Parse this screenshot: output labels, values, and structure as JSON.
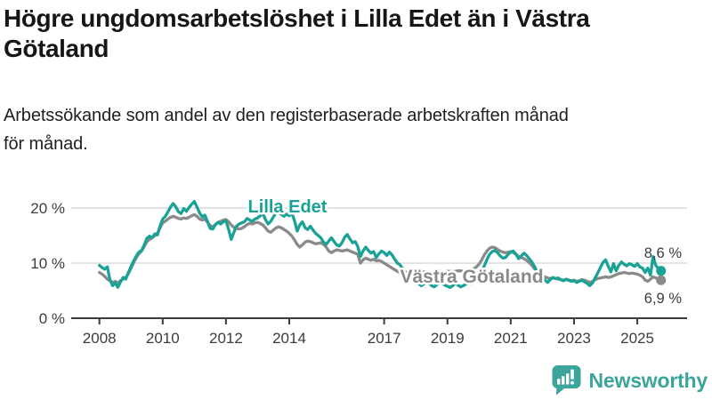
{
  "header": {
    "title": "Högre ungdomsarbetslöshet i Lilla Edet än i Västra Götaland",
    "title_lines": [
      "Högre ungdomsarbetslöshet i Lilla Edet än i Västra",
      "Götaland"
    ],
    "subtitle": "Arbetssökande som andel av den registerbaserade arbetskraften månad för månad.",
    "subtitle_lines": [
      "Arbetssökande som andel av den registerbaserade arbetskraften månad",
      "för månad."
    ]
  },
  "footer": {
    "brand": "Newsworthy"
  },
  "colors": {
    "lilla_edet": "#1AA296",
    "vastra_gotaland": "#8A8A8A",
    "axis": "#3C3C3C",
    "gridline": "#DADADA",
    "annotation_text": "#3C3C3C",
    "brand_teal": "#3BA49B",
    "title_text": "#161616"
  },
  "chart_data": {
    "type": "line",
    "title": "Högre ungdomsarbetslöshet i Lilla Edet än i Västra Götaland",
    "subtitle": "Arbetssökande som andel av den registerbaserade arbetskraften månad för månad.",
    "xlabel": "",
    "ylabel": "",
    "unit": "%",
    "grid": "horizontal",
    "x_start_year": 2008,
    "points_per_year": 12,
    "x_end_year": 2025.75,
    "xlim": [
      2008,
      2026
    ],
    "ylim": [
      0,
      22
    ],
    "x_ticks": [
      {
        "year": 2008,
        "label": "2008"
      },
      {
        "year": 2010,
        "label": "2010"
      },
      {
        "year": 2012,
        "label": "2012"
      },
      {
        "year": 2014,
        "label": "2014"
      },
      {
        "year": 2017,
        "label": "2017"
      },
      {
        "year": 2019,
        "label": "2019"
      },
      {
        "year": 2021,
        "label": "2021"
      },
      {
        "year": 2023,
        "label": "2023"
      },
      {
        "year": 2025,
        "label": "2025"
      }
    ],
    "y_ticks": [
      {
        "value": 0,
        "label": "0 %"
      },
      {
        "value": 10,
        "label": "10 %"
      },
      {
        "value": 20,
        "label": "20 %"
      }
    ],
    "series": [
      {
        "name": "Lilla Edet",
        "color": "#1AA296",
        "end_label": "8,6 %",
        "end_value": 8.6,
        "values": [
          9.6,
          9.2,
          8.9,
          9.3,
          7.0,
          5.9,
          6.4,
          5.6,
          6.6,
          7.4,
          7.1,
          8.3,
          9.4,
          10.4,
          11.3,
          12.0,
          12.3,
          13.3,
          14.5,
          14.9,
          14.6,
          15.3,
          15.1,
          16.7,
          18.0,
          18.5,
          19.3,
          20.2,
          20.8,
          20.2,
          19.3,
          19.0,
          19.9,
          19.4,
          20.1,
          20.7,
          21.2,
          20.2,
          19.1,
          18.4,
          18.7,
          17.5,
          16.3,
          16.2,
          17.0,
          17.4,
          17.1,
          17.5,
          17.7,
          16.1,
          14.3,
          15.6,
          16.7,
          17.1,
          17.3,
          17.5,
          18.1,
          17.8,
          17.6,
          18.0,
          18.2,
          18.6,
          19.0,
          17.9,
          17.1,
          17.6,
          18.4,
          19.1,
          19.3,
          18.8,
          18.5,
          18.9,
          18.6,
          19.1,
          17.7,
          15.8,
          16.9,
          17.5,
          16.4,
          16.1,
          16.7,
          16.0,
          15.4,
          15.0,
          14.6,
          13.8,
          13.4,
          14.0,
          14.6,
          13.9,
          13.3,
          13.1,
          13.7,
          14.7,
          15.2,
          14.4,
          13.7,
          13.9,
          13.0,
          11.2,
          12.2,
          12.9,
          12.3,
          11.8,
          12.1,
          11.0,
          11.7,
          12.2,
          11.9,
          11.4,
          12.0,
          11.5,
          10.7,
          10.0,
          9.7,
          9.0,
          8.4,
          7.9,
          7.4,
          7.0,
          6.7,
          6.3,
          5.9,
          6.2,
          6.6,
          6.3,
          5.9,
          5.7,
          6.1,
          6.5,
          6.3,
          6.0,
          5.8,
          5.6,
          5.9,
          6.3,
          6.0,
          5.7,
          5.9,
          6.2,
          6.5,
          6.3,
          6.6,
          7.0,
          7.6,
          8.4,
          9.5,
          10.7,
          11.6,
          12.1,
          12.3,
          11.9,
          11.3,
          10.9,
          11.0,
          11.6,
          12.0,
          12.2,
          11.6,
          10.8,
          11.3,
          11.8,
          11.4,
          10.8,
          10.2,
          9.4,
          8.5,
          7.8,
          7.4,
          6.9,
          6.5,
          7.0,
          7.4,
          7.2,
          7.3,
          7.0,
          6.8,
          7.1,
          6.9,
          6.7,
          6.8,
          6.5,
          6.7,
          6.9,
          6.6,
          6.3,
          5.9,
          6.4,
          7.3,
          8.2,
          9.2,
          10.1,
          10.6,
          9.4,
          8.4,
          9.9,
          8.6,
          9.6,
          10.2,
          9.8,
          9.5,
          9.9,
          9.7,
          9.4,
          9.9,
          9.3,
          9.1,
          8.3,
          9.1,
          7.8,
          11.2,
          9.6,
          9.0,
          8.6
        ]
      },
      {
        "name": "Västra Götaland",
        "color": "#8A8A8A",
        "end_label": "6,9 %",
        "end_value": 6.9,
        "values": [
          8.3,
          8.0,
          7.6,
          7.1,
          6.8,
          6.5,
          6.7,
          6.4,
          6.8,
          7.1,
          7.4,
          8.1,
          9.1,
          10.1,
          11.0,
          11.7,
          12.2,
          13.0,
          13.9,
          14.3,
          14.6,
          15.0,
          15.4,
          16.4,
          17.3,
          17.6,
          18.0,
          18.3,
          18.5,
          18.3,
          18.1,
          18.0,
          18.2,
          18.1,
          18.3,
          18.6,
          18.8,
          18.5,
          18.0,
          17.8,
          18.0,
          17.4,
          16.8,
          16.6,
          17.0,
          17.4,
          17.6,
          17.8,
          17.9,
          17.5,
          16.9,
          16.5,
          16.3,
          16.2,
          16.3,
          16.6,
          17.0,
          17.2,
          17.1,
          17.3,
          17.4,
          17.2,
          16.9,
          16.4,
          15.8,
          15.6,
          16.0,
          16.4,
          16.6,
          16.4,
          16.1,
          15.8,
          15.4,
          14.9,
          14.2,
          13.4,
          12.9,
          13.3,
          13.8,
          14.0,
          13.9,
          13.7,
          13.5,
          13.6,
          13.7,
          13.4,
          12.9,
          12.2,
          11.9,
          12.2,
          12.4,
          12.3,
          12.2,
          12.3,
          12.4,
          12.2,
          12.0,
          11.8,
          11.6,
          10.0,
          10.6,
          10.9,
          10.7,
          10.5,
          10.7,
          10.4,
          10.5,
          10.3,
          10.0,
          9.7,
          9.4,
          9.1,
          8.8,
          8.5,
          8.3,
          8.2,
          8.2,
          8.3,
          8.3,
          8.2,
          8.2,
          8.3,
          8.3,
          8.4,
          8.4,
          8.3,
          8.3,
          8.4,
          8.5,
          8.5,
          8.4,
          8.4,
          8.5,
          8.5,
          8.4,
          8.5,
          8.6,
          8.6,
          8.5,
          8.6,
          8.7,
          8.8,
          9.0,
          9.3,
          9.8,
          10.6,
          11.5,
          12.2,
          12.7,
          12.9,
          12.8,
          12.5,
          12.2,
          12.0,
          11.9,
          12.0,
          12.1,
          11.9,
          11.6,
          11.2,
          11.0,
          10.8,
          10.5,
          10.1,
          9.6,
          9.0,
          8.4,
          8.0,
          7.7,
          7.5,
          7.3,
          7.2,
          7.3,
          7.2,
          7.1,
          7.0,
          6.9,
          7.0,
          6.9,
          6.8,
          6.9,
          6.7,
          6.8,
          7.0,
          6.9,
          6.7,
          6.5,
          6.7,
          7.0,
          7.2,
          7.3,
          7.4,
          7.5,
          7.4,
          7.5,
          7.7,
          7.9,
          8.1,
          8.2,
          8.3,
          8.2,
          8.1,
          8.2,
          8.1,
          8.0,
          7.8,
          7.5,
          6.9,
          6.7,
          7.1,
          7.5,
          7.3,
          7.1,
          6.9
        ]
      }
    ],
    "legend_position": "inline-labels"
  }
}
